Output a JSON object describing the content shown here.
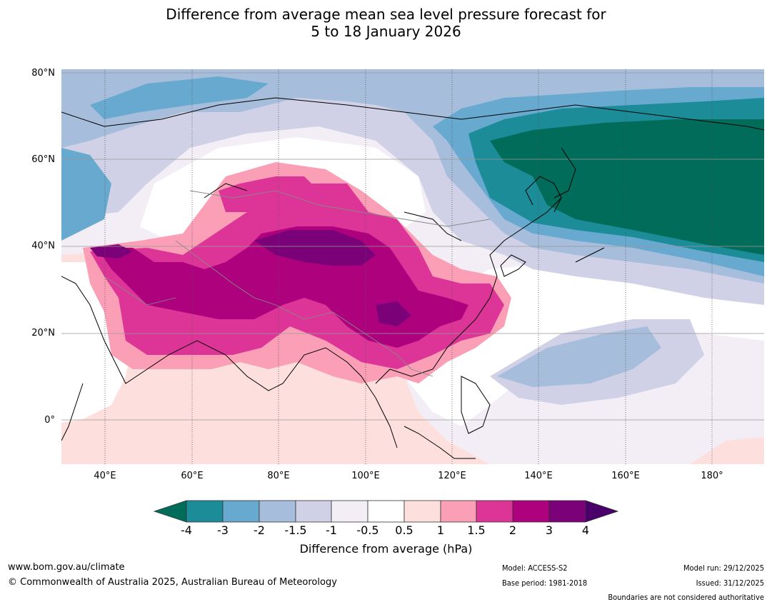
{
  "title": {
    "line1": "Difference from average mean sea level pressure forecast for",
    "line2": "5 to 18 January 2026"
  },
  "map": {
    "lat_labels": [
      "80°N",
      "60°N",
      "40°N",
      "20°N",
      "0°"
    ],
    "lon_labels": [
      "40°E",
      "60°E",
      "80°E",
      "100°E",
      "120°E",
      "140°E",
      "160°E",
      "180°"
    ]
  },
  "colorbar": {
    "title": "Difference from average (hPa)",
    "tick_labels": [
      "-4",
      "-3",
      "-2",
      "-1.5",
      "-1",
      "-0.5",
      "0.5",
      "1",
      "1.5",
      "2",
      "3",
      "4"
    ],
    "colors": {
      "below_-4": "#016c59",
      "-4_-3": "#1c8c99",
      "-3_-2": "#67a9cf",
      "-2_-1.5": "#a6bddb",
      "-1.5_-1": "#d0d1e6",
      "-1_-0.5": "#f3eef6",
      "-0.5_0.5": "#ffffff",
      "0.5_1": "#fde0dd",
      "1_1.5": "#fa9fb5",
      "1.5_2": "#dd3497",
      "2_3": "#ae017e",
      "3_4": "#7a0177",
      "above_4": "#49006a"
    }
  },
  "footer": {
    "website": "www.bom.gov.au/climate",
    "copyright": "© Commonwealth of Australia 2025, Australian Bureau of Meteorology",
    "model": "Model: ACCESS-S2",
    "base_period": "Base period: 1981-2018",
    "model_run": "Model run: 29/12/2025",
    "issued": "Issued: 31/12/2025",
    "disclaimer": "Boundaries are not considered authoritative"
  }
}
